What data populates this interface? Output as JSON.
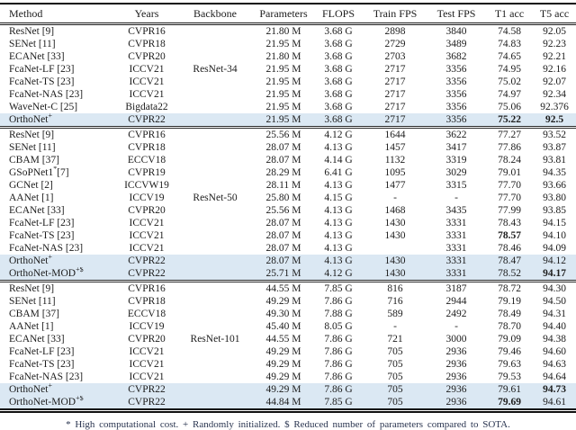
{
  "table": {
    "columns": [
      "Method",
      "Years",
      "Backbone",
      "Parameters",
      "FLOPS",
      "Train FPS",
      "Test FPS",
      "T1 acc",
      "T5 acc"
    ],
    "highlight_color": "#dbe8f3",
    "sections": [
      {
        "backbone": "ResNet-34",
        "rows": [
          {
            "method": "ResNet [9]",
            "sup": "",
            "tail": "",
            "years": "CVPR16",
            "params": "21.80 M",
            "flops": "3.68 G",
            "train": "2898",
            "test": "3840",
            "t1": "74.58",
            "t5": "92.05",
            "t1_bold": false,
            "t5_bold": false,
            "highlight": false
          },
          {
            "method": "SENet [11]",
            "sup": "",
            "tail": "",
            "years": "CVPR18",
            "params": "21.95 M",
            "flops": "3.68 G",
            "train": "2729",
            "test": "3489",
            "t1": "74.83",
            "t5": "92.23",
            "t1_bold": false,
            "t5_bold": false,
            "highlight": false
          },
          {
            "method": "ECANet [33]",
            "sup": "",
            "tail": "",
            "years": "CVPR20",
            "params": "21.80 M",
            "flops": "3.68 G",
            "train": "2703",
            "test": "3682",
            "t1": "74.65",
            "t5": "92.21",
            "t1_bold": false,
            "t5_bold": false,
            "highlight": false
          },
          {
            "method": "FcaNet-LF [23]",
            "sup": "",
            "tail": "",
            "years": "ICCV21",
            "params": "21.95 M",
            "flops": "3.68 G",
            "train": "2717",
            "test": "3356",
            "t1": "74.95",
            "t5": "92.16",
            "t1_bold": false,
            "t5_bold": false,
            "highlight": false
          },
          {
            "method": "FcaNet-TS [23]",
            "sup": "",
            "tail": "",
            "years": "ICCV21",
            "params": "21.95 M",
            "flops": "3.68 G",
            "train": "2717",
            "test": "3356",
            "t1": "75.02",
            "t5": "92.07",
            "t1_bold": false,
            "t5_bold": false,
            "highlight": false
          },
          {
            "method": "FcaNet-NAS [23]",
            "sup": "",
            "tail": "",
            "years": "ICCV21",
            "params": "21.95 M",
            "flops": "3.68 G",
            "train": "2717",
            "test": "3356",
            "t1": "74.97",
            "t5": "92.34",
            "t1_bold": false,
            "t5_bold": false,
            "highlight": false
          },
          {
            "method": "WaveNet-C [25]",
            "sup": "",
            "tail": "",
            "years": "Bigdata22",
            "params": "21.95 M",
            "flops": "3.68 G",
            "train": "2717",
            "test": "3356",
            "t1": "75.06",
            "t5": "92.376",
            "t1_bold": false,
            "t5_bold": false,
            "highlight": false
          },
          {
            "method": "OrthoNet",
            "sup": "+",
            "tail": "",
            "years": "CVPR22",
            "params": "21.95 M",
            "flops": "3.68 G",
            "train": "2717",
            "test": "3356",
            "t1": "75.22",
            "t5": "92.5",
            "t1_bold": true,
            "t5_bold": true,
            "highlight": true
          }
        ]
      },
      {
        "backbone": "ResNet-50",
        "rows": [
          {
            "method": "ResNet [9]",
            "sup": "",
            "tail": "",
            "years": "CVPR16",
            "params": "25.56 M",
            "flops": "4.12 G",
            "train": "1644",
            "test": "3622",
            "t1": "77.27",
            "t5": "93.52",
            "t1_bold": false,
            "t5_bold": false,
            "highlight": false
          },
          {
            "method": "SENet [11]",
            "sup": "",
            "tail": "",
            "years": "CVPR18",
            "params": "28.07 M",
            "flops": "4.13 G",
            "train": "1457",
            "test": "3417",
            "t1": "77.86",
            "t5": "93.87",
            "t1_bold": false,
            "t5_bold": false,
            "highlight": false
          },
          {
            "method": "CBAM [37]",
            "sup": "",
            "tail": "",
            "years": "ECCV18",
            "params": "28.07 M",
            "flops": "4.14 G",
            "train": "1132",
            "test": "3319",
            "t1": "78.24",
            "t5": "93.81",
            "t1_bold": false,
            "t5_bold": false,
            "highlight": false
          },
          {
            "method": "GSoPNet1",
            "sup": "*",
            "tail": "[7]",
            "years": "CVPR19",
            "params": "28.29 M",
            "flops": "6.41 G",
            "train": "1095",
            "test": "3029",
            "t1": "79.01",
            "t5": "94.35",
            "t1_bold": false,
            "t5_bold": false,
            "highlight": false
          },
          {
            "method": "GCNet [2]",
            "sup": "",
            "tail": "",
            "years": "ICCVW19",
            "params": "28.11 M",
            "flops": "4.13 G",
            "train": "1477",
            "test": "3315",
            "t1": "77.70",
            "t5": "93.66",
            "t1_bold": false,
            "t5_bold": false,
            "highlight": false
          },
          {
            "method": "AANet [1]",
            "sup": "",
            "tail": "",
            "years": "ICCV19",
            "params": "25.80 M",
            "flops": "4.15 G",
            "train": "-",
            "test": "-",
            "t1": "77.70",
            "t5": "93.80",
            "t1_bold": false,
            "t5_bold": false,
            "highlight": false
          },
          {
            "method": "ECANet [33]",
            "sup": "",
            "tail": "",
            "years": "CVPR20",
            "params": "25.56 M",
            "flops": "4.13 G",
            "train": "1468",
            "test": "3435",
            "t1": "77.99",
            "t5": "93.85",
            "t1_bold": false,
            "t5_bold": false,
            "highlight": false
          },
          {
            "method": "FcaNet-LF [23]",
            "sup": "",
            "tail": "",
            "years": "ICCV21",
            "params": "28.07 M",
            "flops": "4.13 G",
            "train": "1430",
            "test": "3331",
            "t1": "78.43",
            "t5": "94.15",
            "t1_bold": false,
            "t5_bold": false,
            "highlight": false
          },
          {
            "method": "FcaNet-TS [23]",
            "sup": "",
            "tail": "",
            "years": "ICCV21",
            "params": "28.07 M",
            "flops": "4.13 G",
            "train": "1430",
            "test": "3331",
            "t1": "78.57",
            "t5": "94.10",
            "t1_bold": true,
            "t5_bold": false,
            "highlight": false
          },
          {
            "method": "FcaNet-NAS [23]",
            "sup": "",
            "tail": "",
            "years": "ICCV21",
            "params": "28.07 M",
            "flops": "4.13 G",
            "train": "",
            "test": "3331",
            "t1": "78.46",
            "t5": "94.09",
            "t1_bold": false,
            "t5_bold": false,
            "highlight": false
          },
          {
            "method": "OrthoNet",
            "sup": "+",
            "tail": "",
            "years": "CVPR22",
            "params": "28.07 M",
            "flops": "4.13 G",
            "train": "1430",
            "test": "3331",
            "t1": "78.47",
            "t5": "94.12",
            "t1_bold": false,
            "t5_bold": false,
            "highlight": true
          },
          {
            "method": "OrthoNet-MOD",
            "sup": "+$",
            "tail": "",
            "years": "CVPR22",
            "params": "25.71 M",
            "flops": "4.12 G",
            "train": "1430",
            "test": "3331",
            "t1": "78.52",
            "t5": "94.17",
            "t1_bold": false,
            "t5_bold": true,
            "highlight": true
          }
        ]
      },
      {
        "backbone": "ResNet-101",
        "rows": [
          {
            "method": "ResNet [9]",
            "sup": "",
            "tail": "",
            "years": "CVPR16",
            "params": "44.55 M",
            "flops": "7.85 G",
            "train": "816",
            "test": "3187",
            "t1": "78.72",
            "t5": "94.30",
            "t1_bold": false,
            "t5_bold": false,
            "highlight": false
          },
          {
            "method": "SENet [11]",
            "sup": "",
            "tail": "",
            "years": "CVPR18",
            "params": "49.29 M",
            "flops": "7.86 G",
            "train": "716",
            "test": "2944",
            "t1": "79.19",
            "t5": "94.50",
            "t1_bold": false,
            "t5_bold": false,
            "highlight": false
          },
          {
            "method": "CBAM [37]",
            "sup": "",
            "tail": "",
            "years": "ECCV18",
            "params": "49.30 M",
            "flops": "7.88 G",
            "train": "589",
            "test": "2492",
            "t1": "78.49",
            "t5": "94.31",
            "t1_bold": false,
            "t5_bold": false,
            "highlight": false
          },
          {
            "method": "AANet [1]",
            "sup": "",
            "tail": "",
            "years": "ICCV19",
            "params": "45.40 M",
            "flops": "8.05 G",
            "train": "-",
            "test": "-",
            "t1": "78.70",
            "t5": "94.40",
            "t1_bold": false,
            "t5_bold": false,
            "highlight": false
          },
          {
            "method": "ECANet [33]",
            "sup": "",
            "tail": "",
            "years": "CVPR20",
            "params": "44.55 M",
            "flops": "7.86 G",
            "train": "721",
            "test": "3000",
            "t1": "79.09",
            "t5": "94.38",
            "t1_bold": false,
            "t5_bold": false,
            "highlight": false
          },
          {
            "method": "FcaNet-LF [23]",
            "sup": "",
            "tail": "",
            "years": "ICCV21",
            "params": "49.29 M",
            "flops": "7.86 G",
            "train": "705",
            "test": "2936",
            "t1": "79.46",
            "t5": "94.60",
            "t1_bold": false,
            "t5_bold": false,
            "highlight": false
          },
          {
            "method": "FcaNet-TS [23]",
            "sup": "",
            "tail": "",
            "years": "ICCV21",
            "params": "49.29 M",
            "flops": "7.86 G",
            "train": "705",
            "test": "2936",
            "t1": "79.63",
            "t5": "94.63",
            "t1_bold": false,
            "t5_bold": false,
            "highlight": false
          },
          {
            "method": "FcaNet-NAS [23]",
            "sup": "",
            "tail": "",
            "years": "ICCV21",
            "params": "49.29 M",
            "flops": "7.86 G",
            "train": "705",
            "test": "2936",
            "t1": "79.53",
            "t5": "94.64",
            "t1_bold": false,
            "t5_bold": false,
            "highlight": false
          },
          {
            "method": "OrthoNet",
            "sup": "+",
            "tail": "",
            "years": "CVPR22",
            "params": "49.29 M",
            "flops": "7.86 G",
            "train": "705",
            "test": "2936",
            "t1": "79.61",
            "t5": "94.73",
            "t1_bold": false,
            "t5_bold": true,
            "highlight": true
          },
          {
            "method": "OrthoNet-MOD",
            "sup": "+$",
            "tail": "",
            "years": "CVPR22",
            "params": "44.84 M",
            "flops": "7.85 G",
            "train": "705",
            "test": "2936",
            "t1": "79.69",
            "t5": "94.61",
            "t1_bold": true,
            "t5_bold": false,
            "highlight": true
          }
        ]
      }
    ]
  },
  "footnote": "* High computational cost. + Randomly initialized. $ Reduced number of parameters compared to SOTA."
}
